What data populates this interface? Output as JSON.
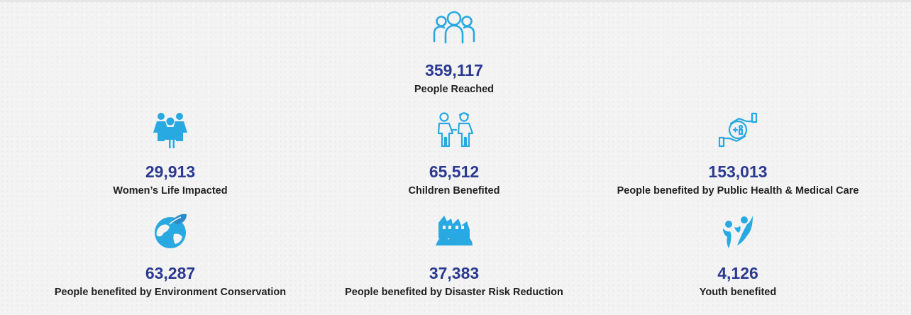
{
  "colors": {
    "accent_icon": "#29a9e1",
    "number": "#2b3990",
    "label": "#222222",
    "background": "#f3f3f3"
  },
  "stats": [
    {
      "icon": "people-group-icon",
      "value": "359,117",
      "label": "People Reached"
    },
    {
      "icon": "women-icon",
      "value": "29,913",
      "label": "Women’s Life Impacted"
    },
    {
      "icon": "children-icon",
      "value": "65,512",
      "label": "Children Benefited"
    },
    {
      "icon": "health-care-hands-icon",
      "value": "153,013",
      "label": "People benefited by Public Health & Medical Care"
    },
    {
      "icon": "globe-leaf-icon",
      "value": "63,287",
      "label": "People benefited by Environment Conservation"
    },
    {
      "icon": "disaster-hands-icon",
      "value": "37,383",
      "label": "People benefited by Disaster Risk Reduction"
    },
    {
      "icon": "youth-icon",
      "value": "4,126",
      "label": "Youth benefited"
    }
  ]
}
